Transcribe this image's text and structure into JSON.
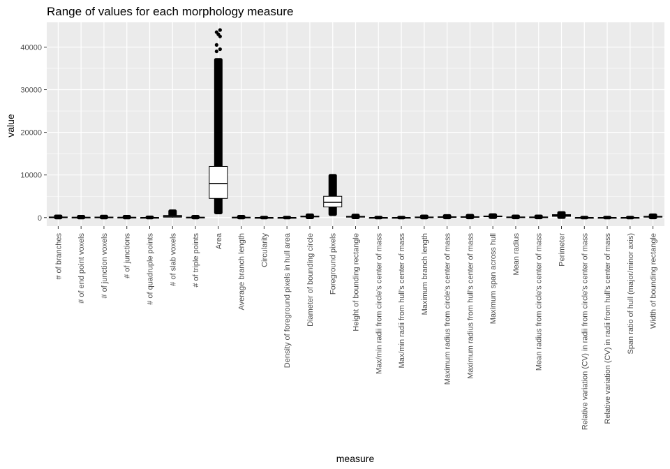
{
  "chart_data": {
    "type": "boxplot",
    "title": "Range of values for each morphology measure",
    "xlabel": "measure",
    "ylabel": "value",
    "ylim": [
      -2000,
      45800
    ],
    "yticks": [
      0,
      10000,
      20000,
      30000,
      40000
    ],
    "ytick_labels": [
      "0",
      "10000",
      "20000",
      "30000",
      "40000"
    ],
    "grid": true,
    "colors": {
      "panel": "#ebebeb",
      "grid": "#ffffff",
      "box": "#000000",
      "points": "#000000"
    },
    "categories": [
      "# of branches",
      "# of end point voxels",
      "# of junction voxels",
      "# of junctions",
      "# of quadruple points",
      "# of slab voxels",
      "# of triple points",
      "Area",
      "Average branch length",
      "Circularity",
      "Density of foreground pixels in hull area",
      "Diameter of bounding circle",
      "Foreground pixels",
      "Height of bounding rectangle",
      "Max/min radii from circle's center of mass",
      "Max/min radii from hull's center of mass",
      "Maximum branch length",
      "Maximum radius from circle's center of mass",
      "Maximum radius from hull's center of mass",
      "Maximum span across hull",
      "Mean radius",
      "Mean radius from circle's center of mass",
      "Perimeter",
      "Relative variation (CV) in radii from circle's center of mass",
      "Relative variation (CV) in radii from hull's center of mass",
      "Span ratio of hull (major/minor axis)",
      "Width of bounding rectangle"
    ],
    "boxes": [
      {
        "q1": 0,
        "median": 60,
        "q3": 150,
        "min": 0,
        "max": 300,
        "outlier_range": [
          0,
          300
        ]
      },
      {
        "q1": 0,
        "median": 30,
        "q3": 80,
        "min": 0,
        "max": 200,
        "outlier_range": [
          0,
          200
        ]
      },
      {
        "q1": 0,
        "median": 50,
        "q3": 120,
        "min": 0,
        "max": 250,
        "outlier_range": [
          0,
          250
        ]
      },
      {
        "q1": 0,
        "median": 30,
        "q3": 70,
        "min": 0,
        "max": 200,
        "outlier_range": [
          0,
          200
        ]
      },
      {
        "q1": 0,
        "median": 0,
        "q3": 10,
        "min": 0,
        "max": 60,
        "outlier_range": [
          0,
          60
        ]
      },
      {
        "q1": 100,
        "median": 300,
        "q3": 500,
        "min": 0,
        "max": 1200,
        "outlier_range": [
          700,
          1500
        ]
      },
      {
        "q1": 0,
        "median": 30,
        "q3": 80,
        "min": 0,
        "max": 200,
        "outlier_range": [
          0,
          200
        ]
      },
      {
        "q1": 4500,
        "median": 8000,
        "q3": 12000,
        "min": 1200,
        "max": 22000,
        "outlier_range": [
          1200,
          37000
        ],
        "extreme_outliers": [
          39000,
          39500,
          40500,
          42500,
          43000,
          43500,
          44000
        ]
      },
      {
        "q1": 0,
        "median": 30,
        "q3": 80,
        "min": 0,
        "max": 200,
        "outlier_range": [
          0,
          200
        ]
      },
      {
        "q1": 0,
        "median": 0,
        "q3": 1,
        "min": 0,
        "max": 1,
        "outlier_range": [
          0,
          1
        ]
      },
      {
        "q1": 0,
        "median": 0,
        "q3": 1,
        "min": 0,
        "max": 1,
        "outlier_range": [
          0,
          1
        ]
      },
      {
        "q1": 150,
        "median": 250,
        "q3": 350,
        "min": 50,
        "max": 500,
        "outlier_range": [
          50,
          550
        ]
      },
      {
        "q1": 2500,
        "median": 3600,
        "q3": 5000,
        "min": 800,
        "max": 9500,
        "outlier_range": [
          800,
          9800
        ]
      },
      {
        "q1": 100,
        "median": 200,
        "q3": 300,
        "min": 50,
        "max": 450,
        "outlier_range": [
          50,
          500
        ]
      },
      {
        "q1": 0,
        "median": 2,
        "q3": 3,
        "min": 0,
        "max": 10,
        "outlier_range": [
          0,
          10
        ]
      },
      {
        "q1": 0,
        "median": 2,
        "q3": 3,
        "min": 0,
        "max": 10,
        "outlier_range": [
          0,
          10
        ]
      },
      {
        "q1": 30,
        "median": 80,
        "q3": 150,
        "min": 0,
        "max": 300,
        "outlier_range": [
          0,
          300
        ]
      },
      {
        "q1": 100,
        "median": 150,
        "q3": 200,
        "min": 30,
        "max": 350,
        "outlier_range": [
          30,
          400
        ]
      },
      {
        "q1": 100,
        "median": 150,
        "q3": 220,
        "min": 30,
        "max": 400,
        "outlier_range": [
          30,
          450
        ]
      },
      {
        "q1": 200,
        "median": 280,
        "q3": 380,
        "min": 80,
        "max": 550,
        "outlier_range": [
          80,
          600
        ]
      },
      {
        "q1": 50,
        "median": 100,
        "q3": 150,
        "min": 20,
        "max": 300,
        "outlier_range": [
          20,
          300
        ]
      },
      {
        "q1": 50,
        "median": 100,
        "q3": 150,
        "min": 20,
        "max": 300,
        "outlier_range": [
          20,
          300
        ]
      },
      {
        "q1": 300,
        "median": 500,
        "q3": 700,
        "min": 100,
        "max": 1000,
        "outlier_range": [
          100,
          1100
        ]
      },
      {
        "q1": 0,
        "median": 0,
        "q3": 1,
        "min": 0,
        "max": 1,
        "outlier_range": [
          0,
          1
        ]
      },
      {
        "q1": 0,
        "median": 0,
        "q3": 1,
        "min": 0,
        "max": 1,
        "outlier_range": [
          0,
          1
        ]
      },
      {
        "q1": 0,
        "median": 1,
        "q3": 2,
        "min": 0,
        "max": 5,
        "outlier_range": [
          0,
          5
        ]
      },
      {
        "q1": 100,
        "median": 200,
        "q3": 300,
        "min": 30,
        "max": 500,
        "outlier_range": [
          30,
          550
        ]
      }
    ]
  }
}
